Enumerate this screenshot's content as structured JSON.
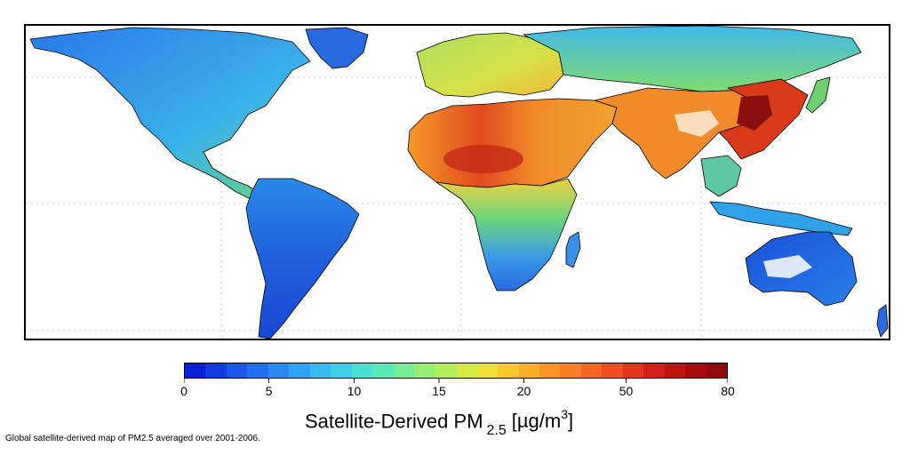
{
  "map": {
    "colors": {
      "land_low": "#1f4fd8",
      "land_mid": "#35a8e8",
      "land_green": "#7ed66a",
      "land_yellow": "#f0d040",
      "land_orange": "#f08a2a",
      "land_red": "#d83a1a",
      "land_darkred": "#8a1010",
      "ocean": "#ffffff",
      "border": "#000000",
      "gridline": "#c8c8c8"
    }
  },
  "legend": {
    "tick_labels": [
      "0",
      "5",
      "10",
      "15",
      "20",
      "50",
      "80"
    ],
    "tick_fractions": [
      0,
      0.156,
      0.313,
      0.469,
      0.625,
      0.813,
      1
    ],
    "title_main": "Satellite-Derived PM",
    "title_sub": "2.5",
    "title_unit_prefix": "[µg/m",
    "title_unit_sup": "3",
    "title_unit_suffix": "]",
    "colors": [
      "#0a1ed2",
      "#0f3ce0",
      "#1a56ea",
      "#2070f0",
      "#2a8af2",
      "#30a2f2",
      "#36baf0",
      "#3ed0ea",
      "#48e0d4",
      "#5ce8b4",
      "#74ec94",
      "#94ee74",
      "#b4ee5a",
      "#d2ea44",
      "#ecde36",
      "#f8c82e",
      "#faae2a",
      "#fa9628",
      "#f87e26",
      "#f46624",
      "#ee4e20",
      "#e4361c",
      "#d42018",
      "#be1412",
      "#a80c0e",
      "#900a0a"
    ]
  },
  "caption": "Global satellite-derived map of PM2.5 averaged over 2001-2006."
}
